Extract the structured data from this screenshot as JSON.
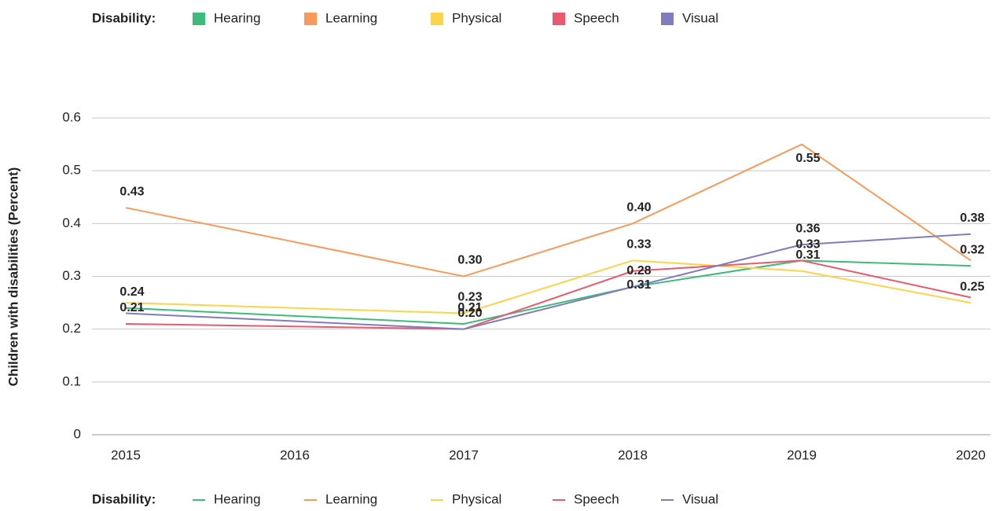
{
  "chart_data": {
    "type": "line",
    "legend_title": "Disability:",
    "y_label": "Children with disabilities (Percent)",
    "x": [
      2015,
      2017,
      2018,
      2019,
      2020
    ],
    "xlim": [
      2015,
      2020
    ],
    "xticks": [
      2015,
      2016,
      2017,
      2018,
      2019,
      2020
    ],
    "ylim": [
      0,
      0.6
    ],
    "yticks": [
      0,
      0.1,
      0.2,
      0.3,
      0.4,
      0.5,
      0.6
    ],
    "grid": true,
    "series": [
      {
        "name": "Hearing",
        "color": "#3dbb7a",
        "values": [
          0.24,
          0.21,
          0.28,
          0.33,
          0.32
        ],
        "value_labels": [
          "0.24",
          "0.21",
          "0.28",
          null,
          "0.32"
        ]
      },
      {
        "name": "Learning",
        "color": "#f79a5a",
        "values": [
          0.43,
          0.3,
          0.4,
          0.55,
          0.33
        ],
        "value_labels": [
          "0.43",
          "0.30",
          "0.40",
          "0.55",
          null
        ]
      },
      {
        "name": "Physical",
        "color": "#fdd34a",
        "values": [
          0.25,
          0.23,
          0.33,
          0.31,
          0.25
        ],
        "value_labels": [
          null,
          "0.23",
          "0.33",
          "0.31",
          "0.25"
        ]
      },
      {
        "name": "Speech",
        "color": "#ea5a6e",
        "values": [
          0.21,
          0.2,
          0.31,
          0.33,
          0.26
        ],
        "value_labels": [
          "0.21",
          "0.20",
          "0.31",
          "0.33",
          null
        ]
      },
      {
        "name": "Visual",
        "color": "#7f7cc0",
        "values": [
          0.23,
          0.2,
          0.28,
          0.36,
          0.38
        ],
        "value_labels": [
          null,
          null,
          null,
          "0.36",
          "0.38"
        ]
      }
    ]
  }
}
